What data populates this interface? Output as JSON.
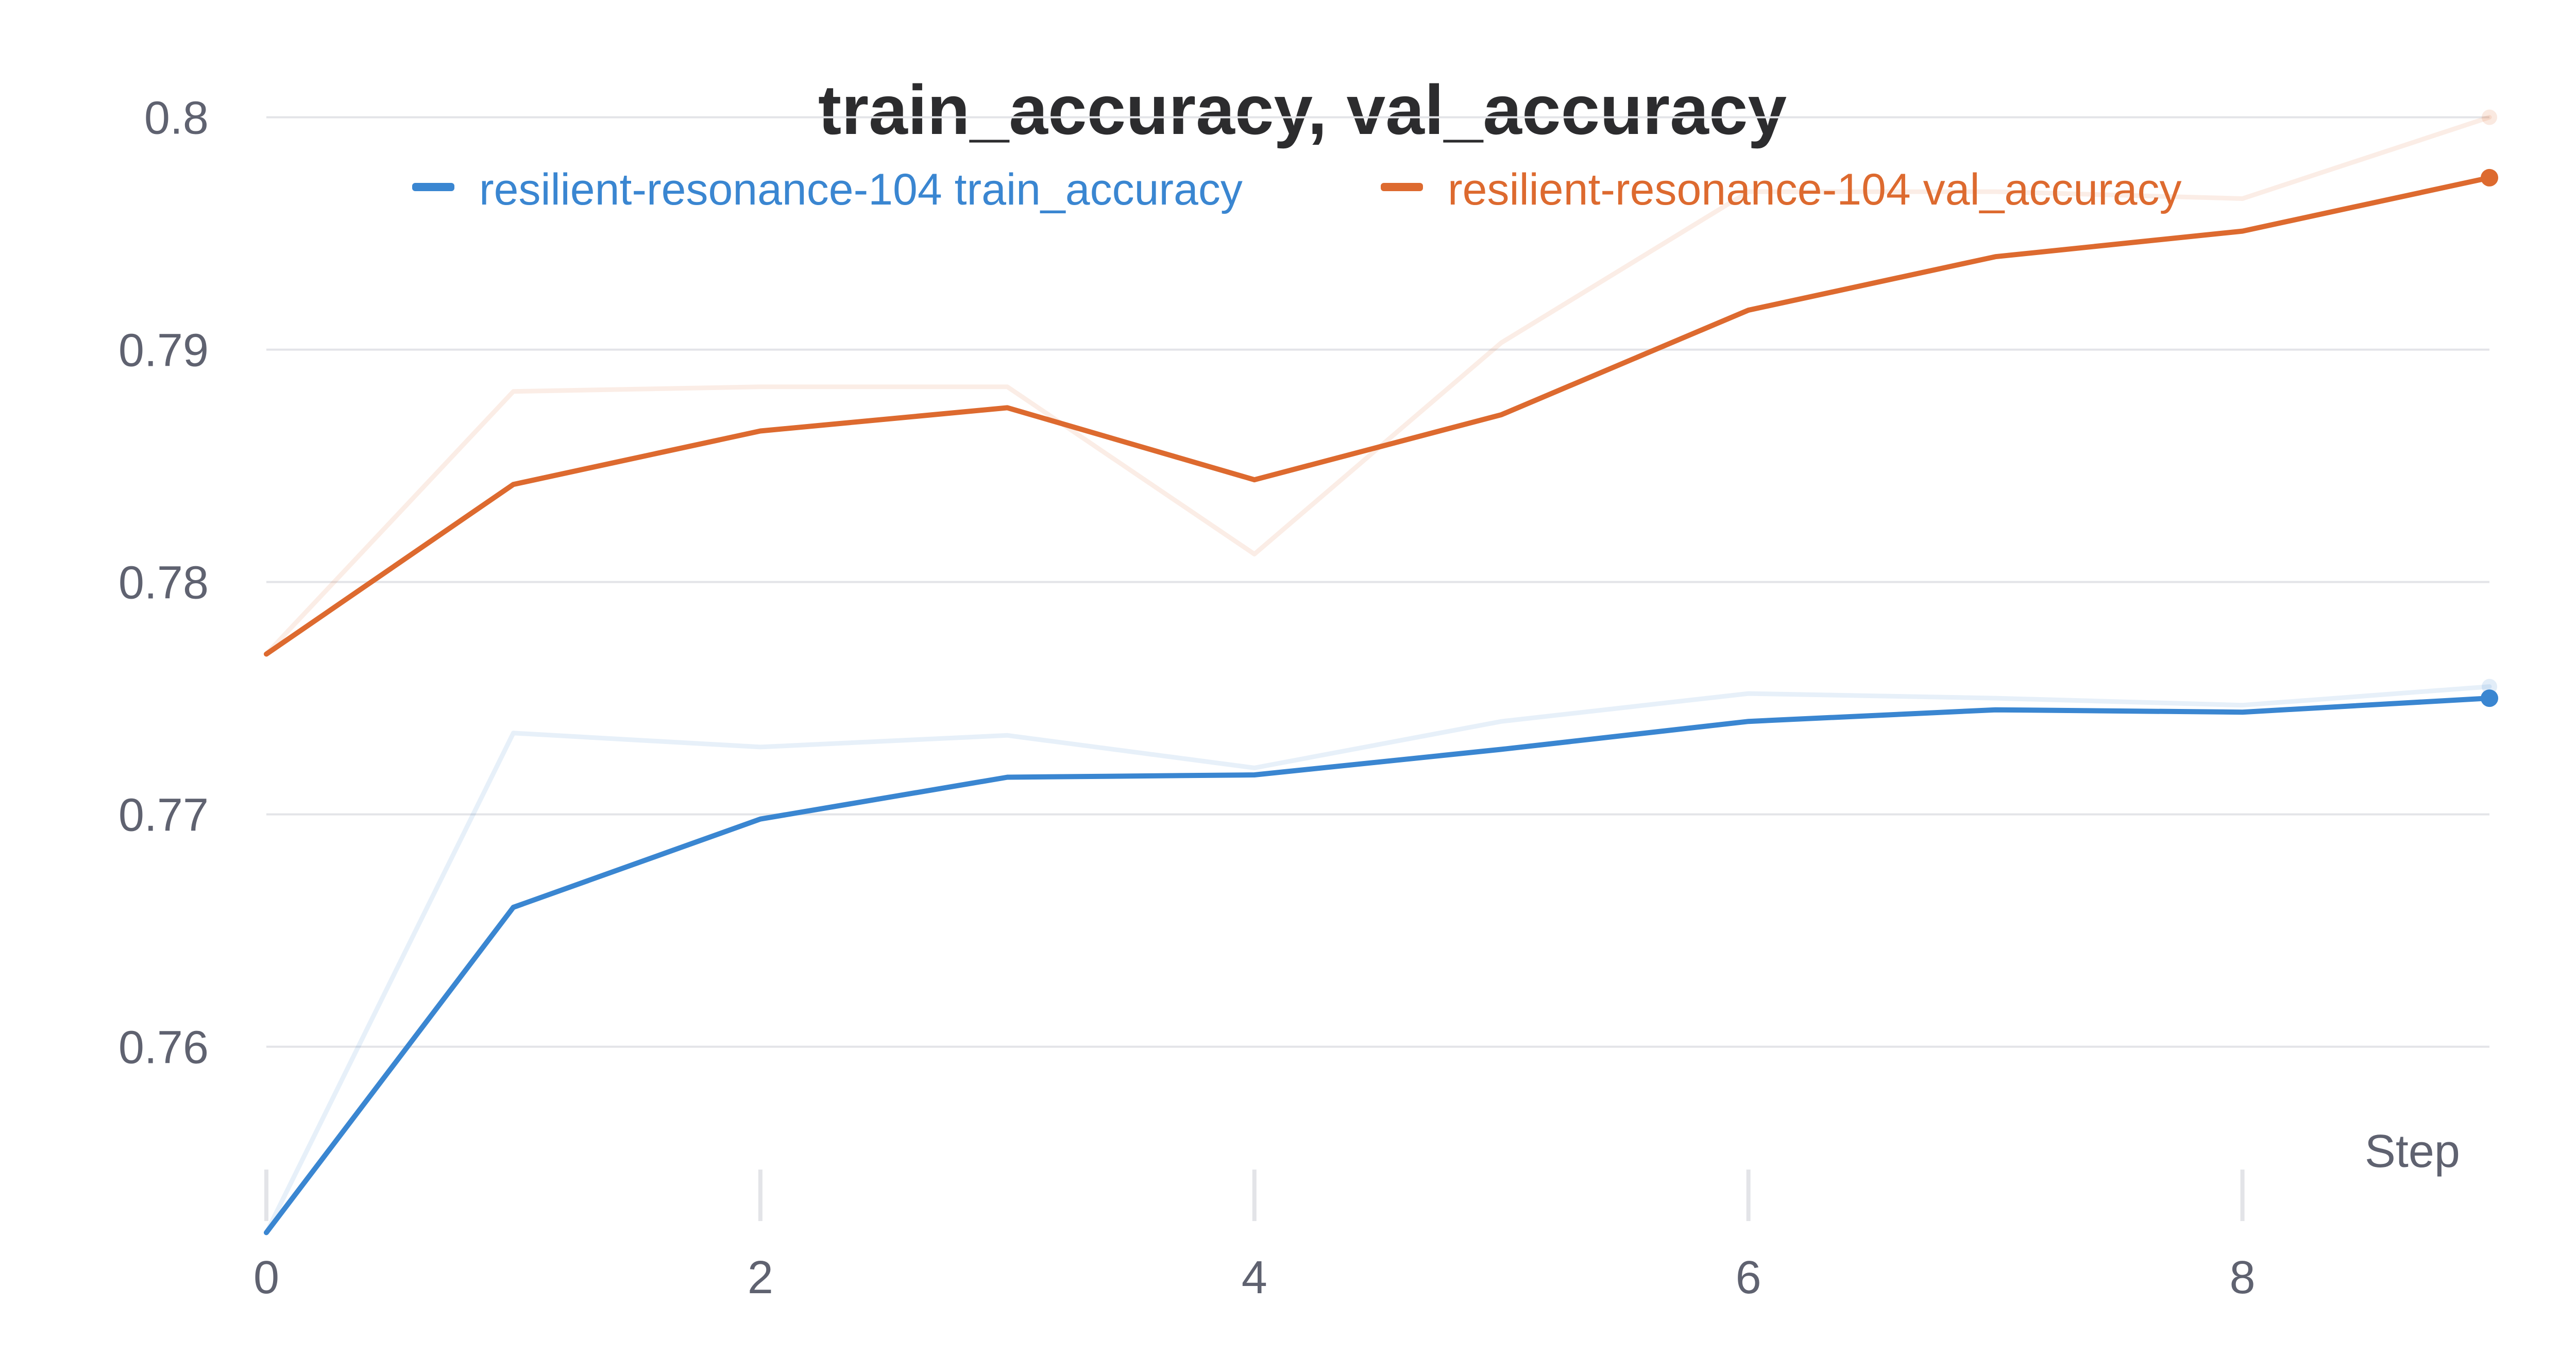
{
  "chart_data": {
    "type": "line",
    "title": "train_accuracy, val_accuracy",
    "xlabel": "Step",
    "ylabel": "",
    "xlim": [
      0,
      9
    ],
    "ylim": [
      0.7515,
      0.8015
    ],
    "x_ticks": [
      0,
      2,
      4,
      6,
      8
    ],
    "y_ticks": [
      0.76,
      0.77,
      0.78,
      0.79,
      0.8
    ],
    "y_tick_labels": [
      "0.76",
      "0.77",
      "0.78",
      "0.79",
      "0.8"
    ],
    "grid": true,
    "legend_position": "top",
    "x": [
      0,
      1,
      2,
      3,
      4,
      5,
      6,
      7,
      8,
      9
    ],
    "series": [
      {
        "name": "resilient-resonance-104 train_accuracy",
        "color": "#3a86d1",
        "values": [
          0.752,
          0.766,
          0.7698,
          0.7716,
          0.7717,
          0.7728,
          0.774,
          0.7745,
          0.7744,
          0.775
        ],
        "raw_values": [
          0.752,
          0.7735,
          0.7729,
          0.7734,
          0.772,
          0.774,
          0.7752,
          0.775,
          0.7747,
          0.7755
        ]
      },
      {
        "name": "resilient-resonance-104 val_accuracy",
        "color": "#dd6a2f",
        "values": [
          0.7769,
          0.7842,
          0.7865,
          0.7875,
          0.7844,
          0.7872,
          0.7917,
          0.794,
          0.7951,
          0.7974
        ],
        "raw_values": [
          0.7769,
          0.7882,
          0.7884,
          0.7884,
          0.7812,
          0.7903,
          0.7968,
          0.7968,
          0.7965,
          0.8
        ]
      }
    ]
  }
}
